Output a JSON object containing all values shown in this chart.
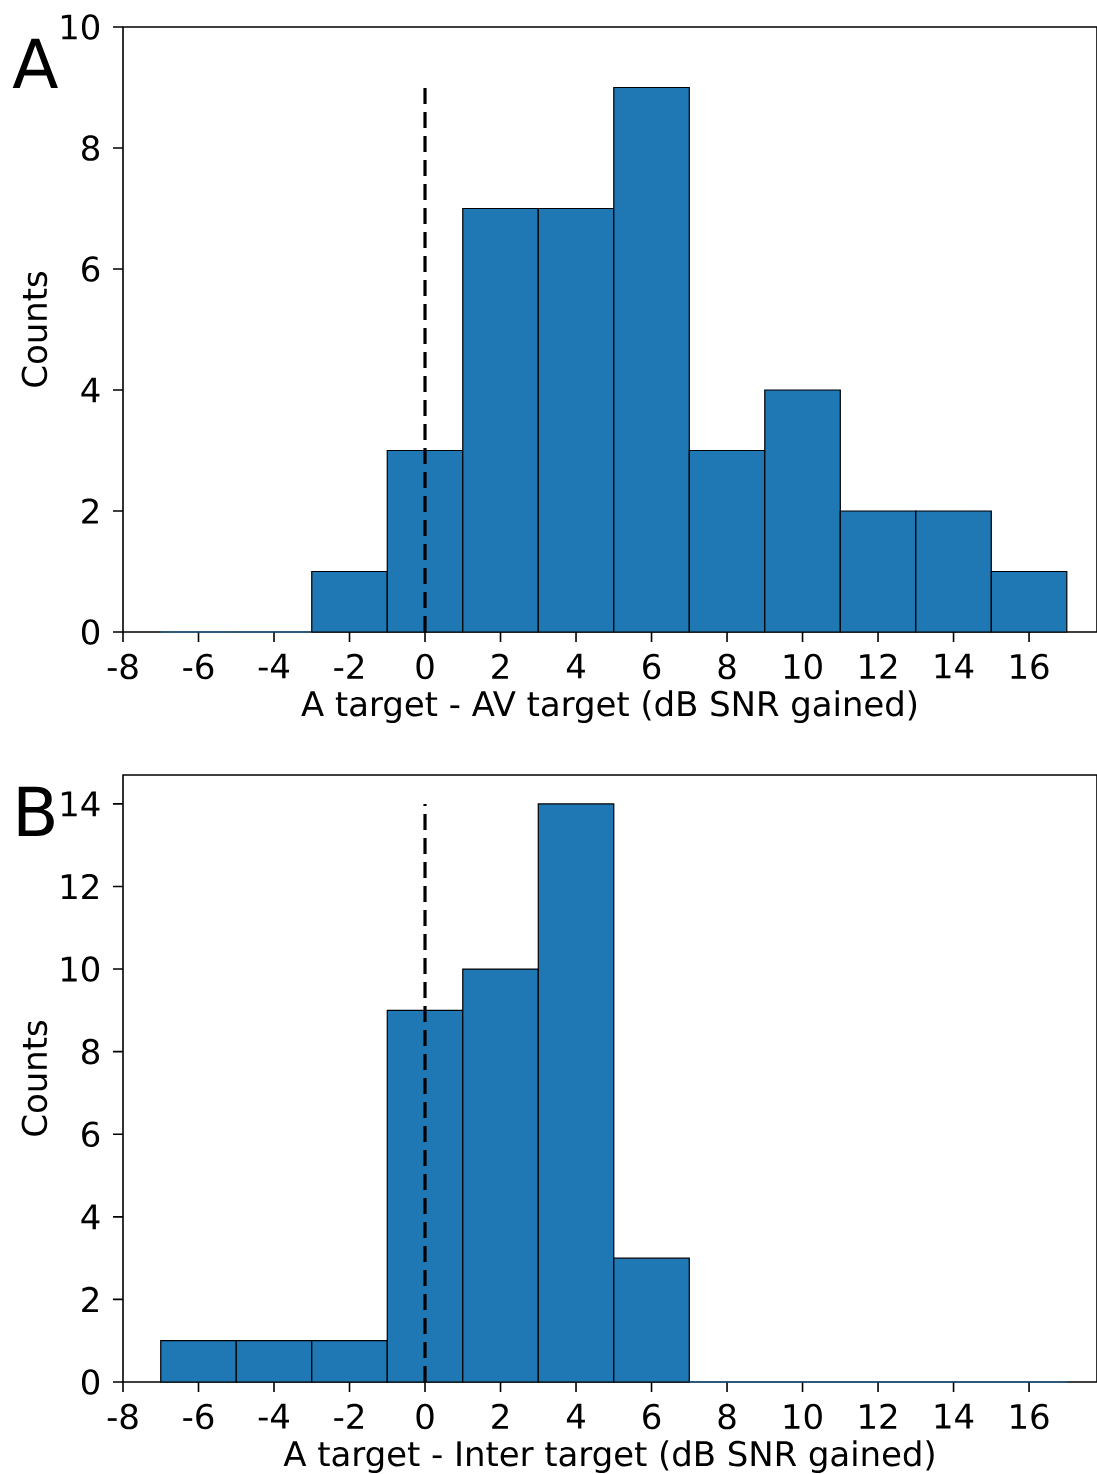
{
  "chart_data": [
    {
      "type": "histogram",
      "bins": [
        -7,
        -5,
        -3,
        -1,
        1,
        3,
        5,
        7,
        9,
        11,
        13,
        15,
        17
      ],
      "values": [
        0,
        0,
        1,
        3,
        7,
        7,
        9,
        3,
        4,
        2,
        2,
        1
      ],
      "color": "#1f77b4",
      "xlim": [
        -8,
        17.8
      ],
      "xticks": [
        -8,
        -6,
        -4,
        -2,
        0,
        2,
        4,
        6,
        8,
        10,
        12,
        14,
        16
      ],
      "ylim": [
        0,
        10
      ],
      "yticks": [
        0,
        2,
        4,
        6,
        8,
        10
      ],
      "xlabel": "A target - AV target (dB SNR gained)",
      "ylabel": "Counts",
      "ref_lines": [
        {
          "axis": "x",
          "value": 0,
          "color": "#000000",
          "line_style": "dashed"
        }
      ],
      "annotations": [
        "A"
      ],
      "grid": false
    },
    {
      "type": "histogram",
      "bins": [
        -7,
        -5,
        -3,
        -1,
        1,
        3,
        5,
        7,
        9,
        11,
        13,
        15,
        17
      ],
      "values": [
        1,
        1,
        1,
        9,
        10,
        14,
        3,
        0,
        0,
        0,
        0,
        0
      ],
      "color": "#1f77b4",
      "xlim": [
        -8,
        17.8
      ],
      "xticks": [
        -8,
        -6,
        -4,
        -2,
        0,
        2,
        4,
        6,
        8,
        10,
        12,
        14,
        16
      ],
      "ylim": [
        0,
        14.7
      ],
      "yticks": [
        0,
        2,
        4,
        6,
        8,
        10,
        12,
        14
      ],
      "xlabel": "A target - Inter target (dB SNR gained)",
      "ylabel": "Counts",
      "ref_lines": [
        {
          "axis": "x",
          "value": 0,
          "color": "#000000",
          "line_style": "dashed"
        }
      ],
      "annotations": [
        "B"
      ],
      "grid": false
    }
  ]
}
